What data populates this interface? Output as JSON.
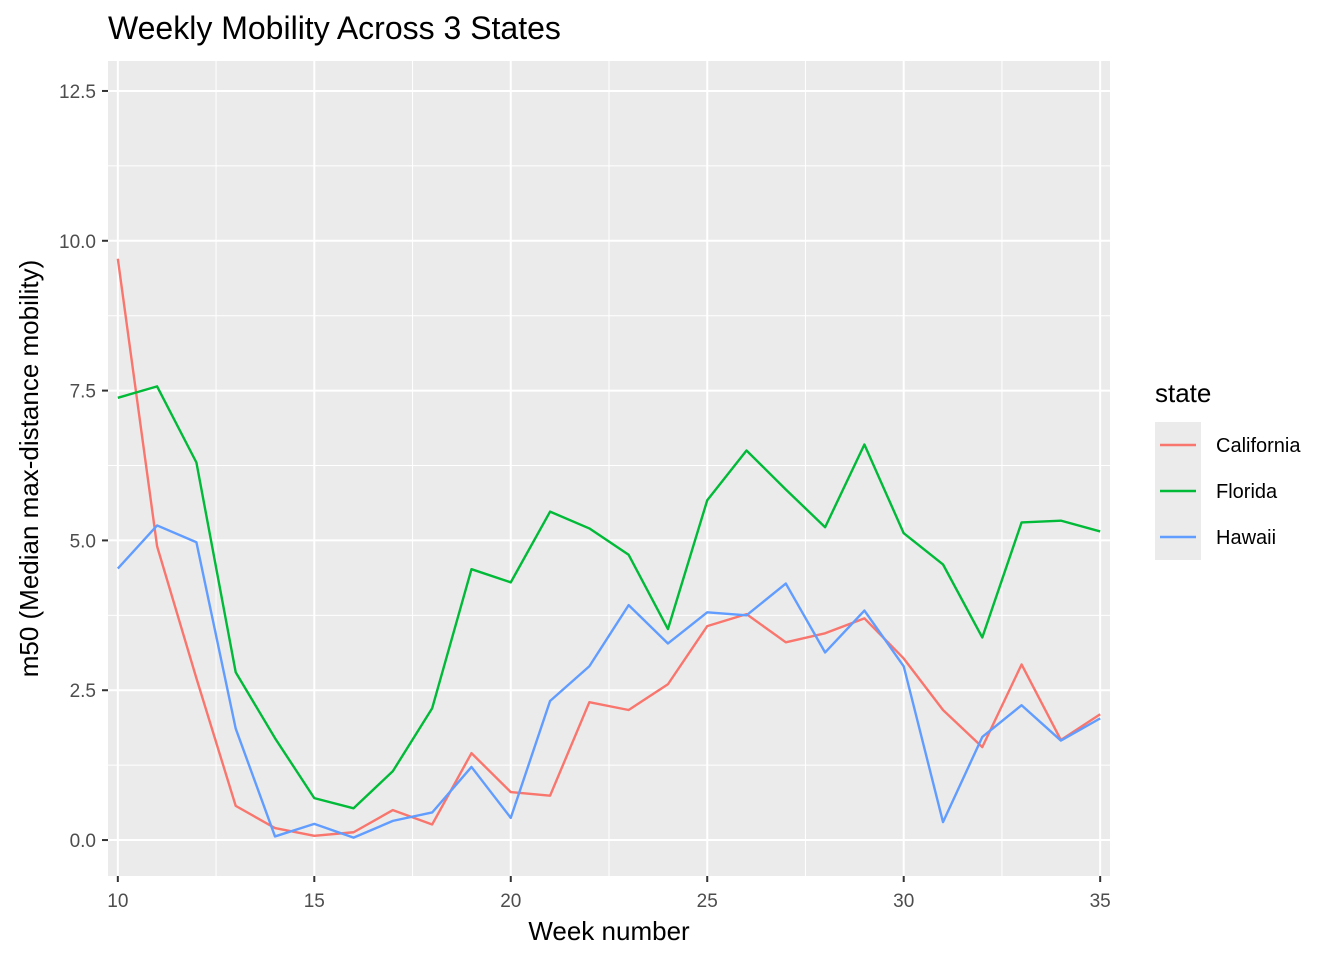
{
  "chart_data": {
    "type": "line",
    "title": "Weekly Mobility Across 3 States",
    "xlabel": "Week number",
    "ylabel": "m50 (Median max-distance mobility)",
    "xlim": [
      9.75,
      35.25
    ],
    "ylim": [
      -0.6,
      13.0
    ],
    "x_ticks": [
      10,
      15,
      20,
      25,
      30,
      35
    ],
    "x_tick_labels": [
      "10",
      "15",
      "20",
      "25",
      "30",
      "35"
    ],
    "y_ticks": [
      0,
      2.5,
      5,
      7.5,
      10,
      12.5
    ],
    "y_tick_labels": [
      "0.0",
      "2.5",
      "5.0",
      "7.5",
      "10.0",
      "12.5"
    ],
    "grid": true,
    "legend": {
      "title": "state",
      "position": "right"
    },
    "x": [
      10,
      11,
      12,
      13,
      14,
      15,
      16,
      17,
      18,
      19,
      20,
      21,
      22,
      23,
      24,
      25,
      26,
      27,
      28,
      29,
      30,
      31,
      32,
      33,
      34,
      35
    ],
    "series": [
      {
        "name": "California",
        "color": "#F8766D",
        "values": [
          9.7,
          4.9,
          2.7,
          0.57,
          0.2,
          0.07,
          0.13,
          0.5,
          0.26,
          1.45,
          0.8,
          0.74,
          2.3,
          2.17,
          2.6,
          3.57,
          3.77,
          3.3,
          3.45,
          3.7,
          3.03,
          2.17,
          1.55,
          2.93,
          1.67,
          2.1
        ]
      },
      {
        "name": "Florida",
        "color": "#00BA38",
        "values": [
          7.38,
          7.57,
          6.3,
          2.8,
          1.7,
          0.7,
          0.53,
          1.15,
          2.2,
          4.52,
          4.3,
          5.48,
          5.2,
          4.76,
          3.52,
          5.67,
          6.5,
          5.85,
          5.22,
          6.6,
          5.12,
          4.6,
          3.38,
          5.3,
          5.33,
          5.15
        ]
      },
      {
        "name": "Hawaii",
        "color": "#619CFF",
        "values": [
          4.53,
          5.25,
          4.97,
          1.86,
          0.06,
          0.27,
          0.04,
          0.32,
          0.46,
          1.22,
          0.37,
          2.32,
          2.9,
          3.92,
          3.28,
          3.8,
          3.75,
          4.28,
          3.13,
          3.83,
          2.9,
          0.3,
          1.72,
          2.25,
          1.66,
          2.03
        ]
      }
    ]
  }
}
